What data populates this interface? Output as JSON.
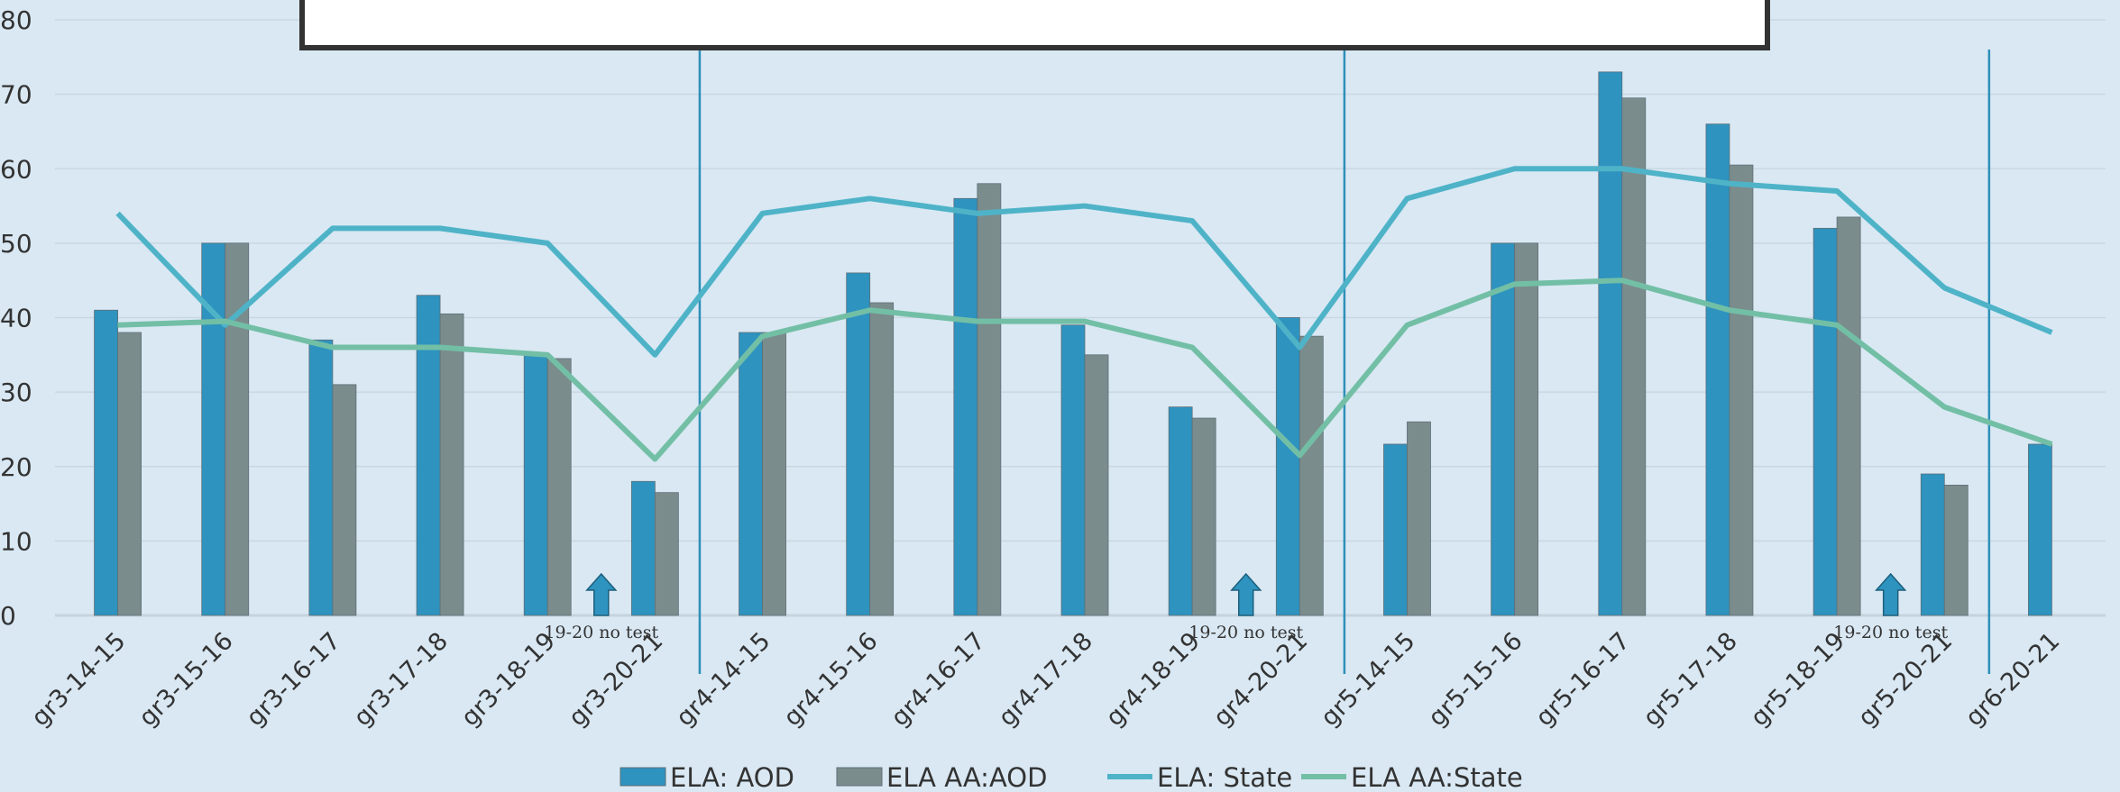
{
  "chart_data": {
    "type": "bar_line",
    "categories": [
      "gr3-14-15",
      "gr3-15-16",
      "gr3-16-17",
      "gr3-17-18",
      "gr3-18-19",
      "gr3-20-21",
      "gr4-14-15",
      "gr4-15-16",
      "gr4-16-17",
      "gr4-17-18",
      "gr4-18-19",
      "gr4-20-21",
      "gr5-14-15",
      "gr5-15-16",
      "gr5-16-17",
      "gr5-17-18",
      "gr5-18-19",
      "gr5-20-21",
      "gr6-20-21"
    ],
    "series": [
      {
        "name": "ELA: AOD",
        "kind": "bar",
        "color": "#2e93bf",
        "values": [
          41,
          50,
          37,
          43,
          35,
          18,
          38,
          46,
          56,
          39,
          28,
          40,
          23,
          50,
          73,
          66,
          52,
          19,
          23
        ]
      },
      {
        "name": "ELA AA:AOD",
        "kind": "bar",
        "color": "#7b8c8c",
        "values": [
          38,
          50,
          31,
          40.5,
          34.5,
          16.5,
          38,
          42,
          58,
          35,
          26.5,
          37.5,
          26,
          50,
          69.5,
          60.5,
          53.5,
          17.5,
          null
        ]
      },
      {
        "name": "ELA: State",
        "kind": "line",
        "color": "#4fb3c8",
        "values": [
          54,
          39,
          52,
          52,
          50,
          35,
          54,
          56,
          54,
          55,
          53,
          36,
          56,
          60,
          60,
          58,
          57,
          44,
          38
        ]
      },
      {
        "name": "ELA AA:State",
        "kind": "line",
        "color": "#72bfa6",
        "values": [
          39,
          39.5,
          36,
          36,
          35,
          21,
          37.5,
          41,
          39.5,
          39.5,
          36,
          21.5,
          39,
          44.5,
          45,
          41,
          39,
          28,
          23
        ]
      }
    ],
    "annotations": [
      "19-20 no test",
      "19-20 no test",
      "19-20 no test"
    ],
    "ylim": [
      0,
      80
    ],
    "yticks": [
      0,
      10,
      20,
      30,
      40,
      50,
      60,
      70,
      80
    ],
    "grid": true
  }
}
